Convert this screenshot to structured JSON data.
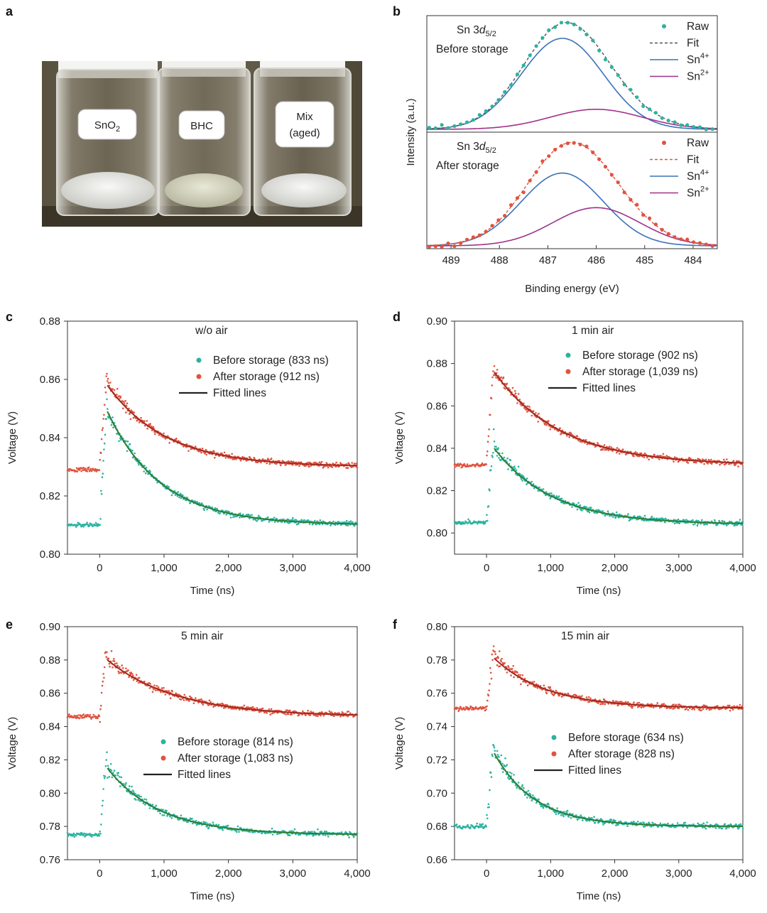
{
  "panels": {
    "a": "a",
    "b": "b",
    "c": "c",
    "d": "d",
    "e": "e",
    "f": "f"
  },
  "photo": {
    "vials": [
      "SnO",
      "BHC",
      "Mix"
    ],
    "vial1_sub": "2",
    "vial3_line2": "(aged)"
  },
  "colors": {
    "teal": "#2bb3a0",
    "red": "#e0533f",
    "blue": "#3a72b8",
    "purple": "#a0308a",
    "teal_fit": "#2e7d32",
    "red_fit": "#9e2a20"
  },
  "chart_data": [
    {
      "id": "b",
      "type": "scatter",
      "xlabel": "Binding energy (eV)",
      "ylabel": "Intensity (a.u.)",
      "xlim": [
        489.5,
        483.5
      ],
      "x_reversed": true,
      "xticks": [
        "489",
        "488",
        "487",
        "486",
        "485",
        "484"
      ],
      "subpanels": [
        {
          "title_main": "Sn 3",
          "title_italic": "d",
          "title_sub": "5/2",
          "state": "Before storage",
          "legend": [
            "Raw",
            "Fit",
            "Sn",
            "Sn"
          ],
          "legend_sup": [
            "",
            "",
            "4+",
            "2+"
          ],
          "components": {
            "sn4_center": 486.7,
            "sn4_height": 1.0,
            "sn4_width": 0.85,
            "sn2_center": 486.0,
            "sn2_height": 0.22,
            "sn2_width": 0.95
          }
        },
        {
          "title_main": "Sn 3",
          "title_italic": "d",
          "title_sub": "5/2",
          "state": "After storage",
          "legend": [
            "Raw",
            "Fit",
            "Sn",
            "Sn"
          ],
          "legend_sup": [
            "",
            "",
            "4+",
            "2+"
          ],
          "components": {
            "sn4_center": 486.7,
            "sn4_height": 0.8,
            "sn4_width": 0.85,
            "sn2_center": 486.0,
            "sn2_height": 0.42,
            "sn2_width": 0.9
          }
        }
      ]
    },
    {
      "id": "c",
      "type": "scatter",
      "annotation": "w/o air",
      "xlabel": "Time (ns)",
      "ylabel": "Voltage (V)",
      "xlim": [
        -500,
        4000
      ],
      "ylim": [
        0.8,
        0.88
      ],
      "xticks": [
        "0",
        "1,000",
        "2,000",
        "3,000",
        "4,000"
      ],
      "yticks": [
        "0.80",
        "0.82",
        "0.84",
        "0.86",
        "0.88"
      ],
      "legend": [
        "Before storage (833 ns)",
        "After storage (912 ns)",
        "Fitted lines"
      ],
      "series": [
        {
          "name": "Before storage (833 ns)",
          "baseline": 0.81,
          "peak": 0.849,
          "tau": 833,
          "offset": 0.81
        },
        {
          "name": "After storage (912 ns)",
          "baseline": 0.829,
          "peak": 0.858,
          "tau": 912,
          "offset": 0.83
        }
      ]
    },
    {
      "id": "d",
      "type": "scatter",
      "annotation": "1 min air",
      "xlabel": "Time (ns)",
      "ylabel": "Voltage (V)",
      "xlim": [
        -500,
        4000
      ],
      "ylim": [
        0.79,
        0.9
      ],
      "xticks": [
        "0",
        "1,000",
        "2,000",
        "3,000",
        "4,000"
      ],
      "yticks": [
        "0.80",
        "0.82",
        "0.84",
        "0.86",
        "0.88",
        "0.90"
      ],
      "legend": [
        "Before storage (902 ns)",
        "After storage (1,039 ns)",
        "Fitted lines"
      ],
      "series": [
        {
          "name": "Before storage (902 ns)",
          "baseline": 0.805,
          "peak": 0.84,
          "tau": 902,
          "offset": 0.804
        },
        {
          "name": "After storage (1,039 ns)",
          "baseline": 0.832,
          "peak": 0.876,
          "tau": 1039,
          "offset": 0.832
        }
      ]
    },
    {
      "id": "e",
      "type": "scatter",
      "annotation": "5 min air",
      "xlabel": "Time (ns)",
      "ylabel": "Voltage (V)",
      "xlim": [
        -500,
        4000
      ],
      "ylim": [
        0.76,
        0.9
      ],
      "xticks": [
        "0",
        "1,000",
        "2,000",
        "3,000",
        "4,000"
      ],
      "yticks": [
        "0.76",
        "0.78",
        "0.80",
        "0.82",
        "0.84",
        "0.86",
        "0.88",
        "0.90"
      ],
      "legend": [
        "Before storage (814 ns)",
        "After storage (1,083 ns)",
        "Fitted lines"
      ],
      "series": [
        {
          "name": "Before storage (814 ns)",
          "baseline": 0.775,
          "peak": 0.815,
          "tau": 814,
          "offset": 0.775
        },
        {
          "name": "After storage (1,083 ns)",
          "baseline": 0.846,
          "peak": 0.88,
          "tau": 1083,
          "offset": 0.846
        }
      ]
    },
    {
      "id": "f",
      "type": "scatter",
      "annotation": "15 min air",
      "xlabel": "Time (ns)",
      "ylabel": "Voltage (V)",
      "xlim": [
        -500,
        4000
      ],
      "ylim": [
        0.66,
        0.8
      ],
      "xticks": [
        "0",
        "1,000",
        "2,000",
        "3,000",
        "4,000"
      ],
      "yticks": [
        "0.66",
        "0.68",
        "0.70",
        "0.72",
        "0.74",
        "0.76",
        "0.78",
        "0.80"
      ],
      "legend": [
        "Before storage (634 ns)",
        "After storage (828 ns)",
        "Fitted lines"
      ],
      "series": [
        {
          "name": "Before storage (634 ns)",
          "baseline": 0.68,
          "peak": 0.724,
          "tau": 634,
          "offset": 0.68
        },
        {
          "name": "After storage (828 ns)",
          "baseline": 0.751,
          "peak": 0.781,
          "tau": 828,
          "offset": 0.751
        }
      ]
    }
  ]
}
